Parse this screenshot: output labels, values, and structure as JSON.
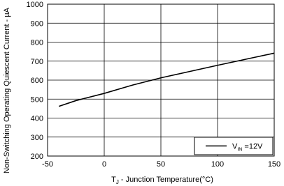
{
  "chart_data": {
    "type": "line",
    "xlabel": [
      "T",
      "J",
      " - Junction Temperature(°C)"
    ],
    "ylabel": "Non-Switching Operating Quiescent Current - µA",
    "x": [
      -40,
      -25,
      0,
      25,
      50,
      75,
      100,
      125,
      150
    ],
    "series": [
      {
        "name": [
          "V",
          "IN",
          " =12V"
        ],
        "color": "#000000",
        "values": [
          462,
          492,
          530,
          574,
          612,
          645,
          678,
          710,
          742
        ]
      }
    ],
    "xlim": [
      -50,
      150
    ],
    "xticks": [
      -50,
      0,
      50,
      100,
      150
    ],
    "ylim": [
      200,
      1000
    ],
    "yticks": [
      200,
      300,
      400,
      500,
      600,
      700,
      800,
      900,
      1000
    ],
    "grid": true,
    "legend": "lower right"
  }
}
